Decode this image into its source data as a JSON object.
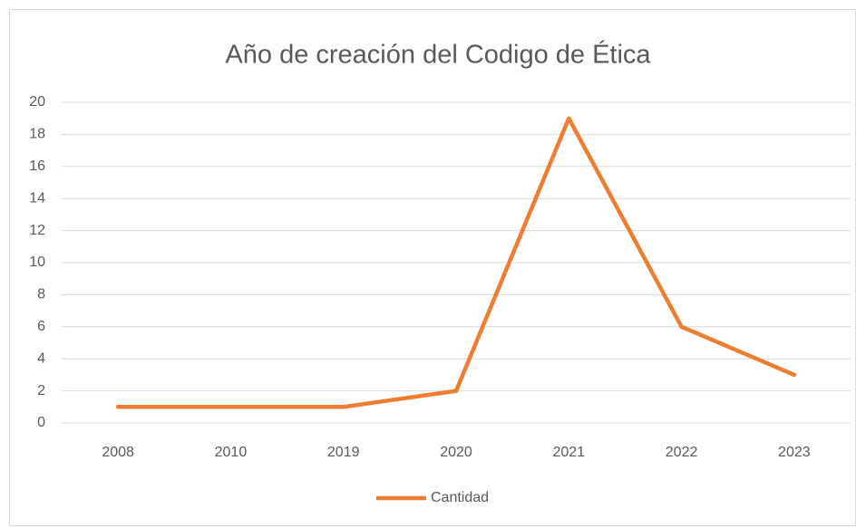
{
  "chart_data": {
    "type": "line",
    "title": "Año de creación del Codigo de Ética",
    "categories": [
      "2008",
      "2010",
      "2019",
      "2020",
      "2021",
      "2022",
      "2023"
    ],
    "series": [
      {
        "name": "Cantidad",
        "color": "#ED7D31",
        "values": [
          1,
          1,
          1,
          2,
          19,
          6,
          3
        ]
      }
    ],
    "ylim": [
      0,
      20
    ],
    "yticks": [
      0,
      2,
      4,
      6,
      8,
      10,
      12,
      14,
      16,
      18,
      20
    ],
    "grid": true,
    "legend": "bottom"
  }
}
